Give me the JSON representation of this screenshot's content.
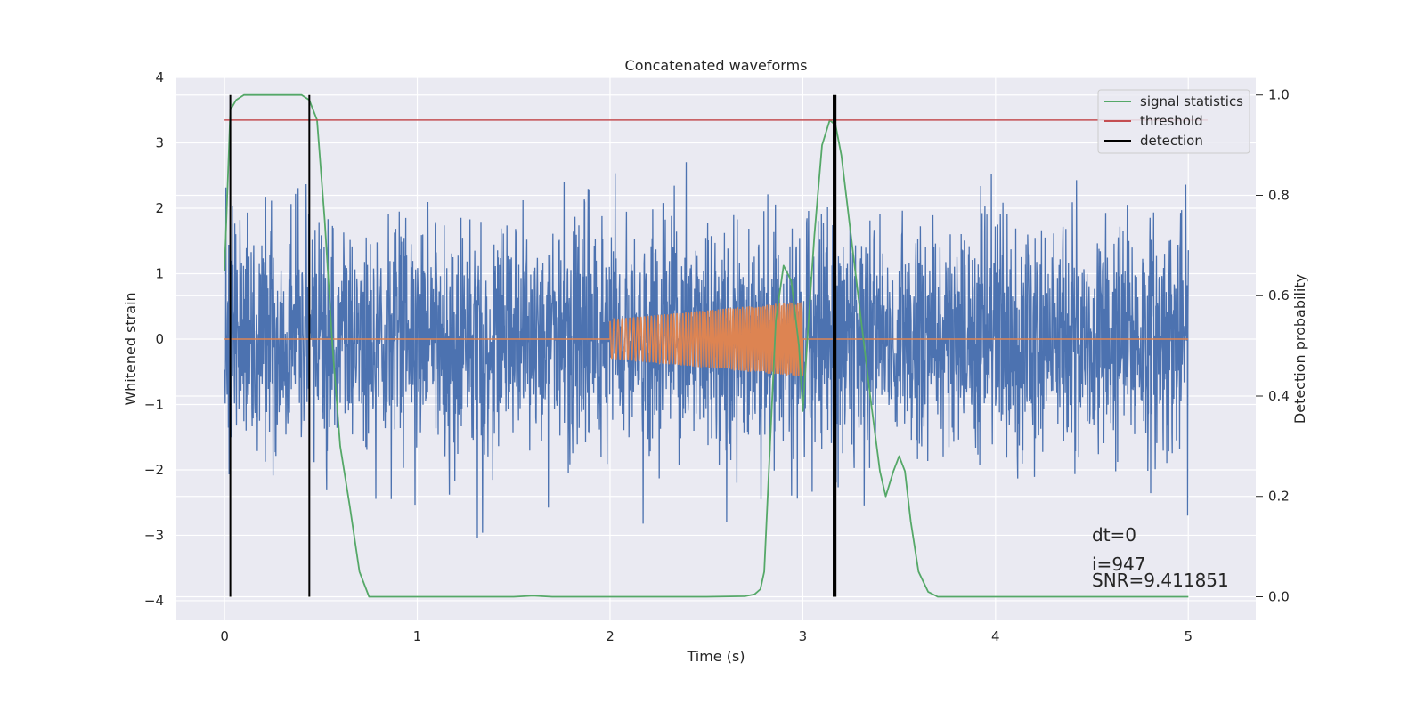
{
  "chart_data": {
    "type": "line",
    "title": "Concatenated waveforms",
    "xlabel": "Time (s)",
    "ylabel": "Whitened strain",
    "y2label": "Detection probability",
    "xlim": [
      -0.25,
      5.35
    ],
    "ylim": [
      -4.3,
      4.0
    ],
    "y2lim": [
      -0.047,
      1.035
    ],
    "xticks": [
      0,
      1,
      2,
      3,
      4,
      5
    ],
    "xtick_labels": [
      "0",
      "1",
      "2",
      "3",
      "4",
      "5"
    ],
    "yticks": [
      4,
      3,
      2,
      1,
      0,
      -1,
      -2,
      -3,
      -4
    ],
    "ytick_labels": [
      "4",
      "3",
      "2",
      "1",
      "0",
      "−1",
      "−2",
      "−3",
      "−4"
    ],
    "y2ticks": [
      1.0,
      0.8,
      0.6,
      0.4,
      0.2,
      0.0
    ],
    "y2tick_labels": [
      "1.0",
      "0.8",
      "0.6",
      "0.4",
      "0.2",
      "0.0"
    ],
    "grid": true,
    "legend_position": "top-right",
    "series": [
      {
        "name": "",
        "kind": "whitened-noise",
        "axis": "left",
        "color": "#4c72b0",
        "x_range": [
          0,
          5
        ],
        "approx_std": 0.9,
        "approx_range": [
          -4,
          3.65
        ]
      },
      {
        "name": "",
        "kind": "injected-chirp",
        "axis": "left",
        "color": "#dd8452",
        "x_range": [
          0,
          5
        ],
        "chirp_start": 2.0,
        "chirp_end": 3.0,
        "amplitude_start": 0.3,
        "amplitude_end": 0.58
      },
      {
        "name": "signal statistics",
        "axis": "right",
        "color": "#55a868",
        "x": [
          0.0,
          0.03,
          0.06,
          0.1,
          0.15,
          0.2,
          0.3,
          0.4,
          0.44,
          0.48,
          0.52,
          0.56,
          0.6,
          0.65,
          0.7,
          0.75,
          1.0,
          1.5,
          1.6,
          1.7,
          2.0,
          2.5,
          2.7,
          2.75,
          2.78,
          2.8,
          2.83,
          2.86,
          2.9,
          2.94,
          2.98,
          3.0,
          3.03,
          3.06,
          3.1,
          3.14,
          3.17,
          3.2,
          3.25,
          3.3,
          3.35,
          3.4,
          3.43,
          3.47,
          3.5,
          3.53,
          3.56,
          3.6,
          3.65,
          3.7,
          4.0,
          5.0
        ],
        "y": [
          0.65,
          0.97,
          0.99,
          1.0,
          1.0,
          1.0,
          1.0,
          1.0,
          0.99,
          0.95,
          0.75,
          0.5,
          0.3,
          0.18,
          0.05,
          0.0,
          0.0,
          0.0,
          0.002,
          0.0,
          0.0,
          0.0,
          0.001,
          0.005,
          0.015,
          0.05,
          0.3,
          0.55,
          0.66,
          0.63,
          0.5,
          0.37,
          0.55,
          0.72,
          0.9,
          0.95,
          0.94,
          0.88,
          0.72,
          0.56,
          0.4,
          0.25,
          0.2,
          0.25,
          0.28,
          0.25,
          0.15,
          0.05,
          0.01,
          0.0,
          0.0,
          0.0
        ]
      },
      {
        "name": "threshold",
        "axis": "right",
        "color": "#c44e52",
        "x": [
          0.0,
          5.1
        ],
        "y": [
          0.95,
          0.95
        ]
      },
      {
        "name": "detection",
        "axis": "right",
        "color": "#000000",
        "kind": "vlines",
        "x": [
          0.03,
          0.44,
          3.16,
          3.17
        ],
        "y_range": [
          0.0,
          1.0
        ]
      }
    ],
    "annotations": [
      "dt=0",
      "i=947",
      "SNR=9.411851"
    ]
  }
}
